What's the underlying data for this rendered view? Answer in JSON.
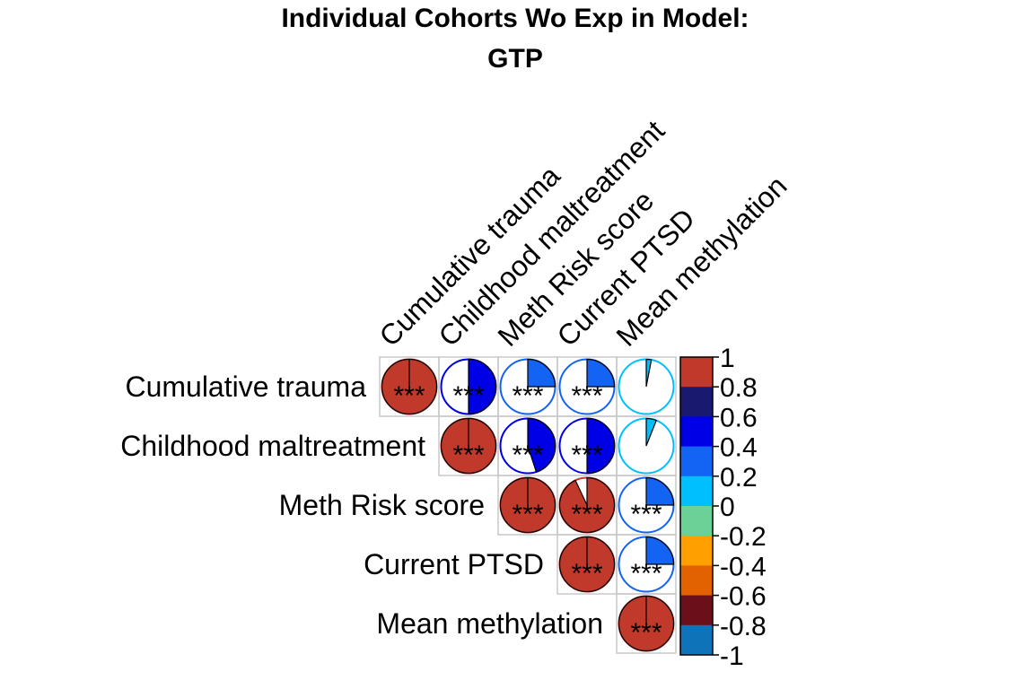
{
  "chart_data": {
    "type": "heatmap",
    "title": [
      "Individual Cohorts Wo Exp in Model:",
      "GTP"
    ],
    "variables": [
      "Cumulative trauma",
      "Childhood maltreatment",
      "Meth Risk score",
      "Current PTSD",
      "Mean methylation"
    ],
    "layout": "upper-triangle pie correlation matrix",
    "cells": [
      {
        "row": 0,
        "col": 0,
        "r": 1.0,
        "sig": "***"
      },
      {
        "row": 0,
        "col": 1,
        "r": 0.5,
        "sig": "***"
      },
      {
        "row": 0,
        "col": 2,
        "r": 0.25,
        "sig": "***"
      },
      {
        "row": 0,
        "col": 3,
        "r": 0.25,
        "sig": "***"
      },
      {
        "row": 0,
        "col": 4,
        "r": 0.03,
        "sig": ""
      },
      {
        "row": 1,
        "col": 1,
        "r": 1.0,
        "sig": "***"
      },
      {
        "row": 1,
        "col": 2,
        "r": 0.45,
        "sig": "***"
      },
      {
        "row": 1,
        "col": 3,
        "r": 0.5,
        "sig": "***"
      },
      {
        "row": 1,
        "col": 4,
        "r": 0.06,
        "sig": ""
      },
      {
        "row": 2,
        "col": 2,
        "r": 1.0,
        "sig": "***"
      },
      {
        "row": 2,
        "col": 3,
        "r": 0.93,
        "sig": "***"
      },
      {
        "row": 2,
        "col": 4,
        "r": 0.25,
        "sig": "***"
      },
      {
        "row": 3,
        "col": 3,
        "r": 1.0,
        "sig": "***"
      },
      {
        "row": 3,
        "col": 4,
        "r": 0.25,
        "sig": "***"
      },
      {
        "row": 4,
        "col": 4,
        "r": 1.0,
        "sig": "***"
      }
    ],
    "colorbar": {
      "ticks": [
        "1",
        "0.8",
        "0.6",
        "0.4",
        "0.2",
        "0",
        "-0.2",
        "-0.4",
        "-0.6",
        "-0.8",
        "-1"
      ],
      "colors": [
        "#C0392B",
        "#191970",
        "#0000E6",
        "#1464F4",
        "#00BFFF",
        "#6CD196",
        "#FF9F00",
        "#E26100",
        "#6B0F1A",
        "#0E73B8"
      ],
      "range": [
        -1,
        1
      ]
    },
    "colors": {
      "cell_border": "#c8c8c8"
    }
  }
}
